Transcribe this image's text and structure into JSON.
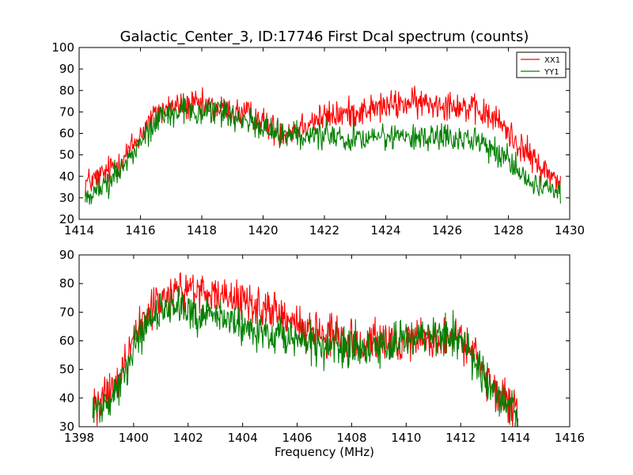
{
  "chart_data": [
    {
      "type": "line",
      "title": "Galactic_Center_3, ID:17746 First Dcal spectrum (counts)",
      "xlabel": "",
      "ylabel": "",
      "xlim": [
        1414,
        1430
      ],
      "ylim": [
        20,
        100
      ],
      "xticks": [
        1414,
        1416,
        1418,
        1420,
        1422,
        1424,
        1426,
        1428,
        1430
      ],
      "yticks": [
        20,
        30,
        40,
        50,
        60,
        70,
        80,
        90,
        100
      ],
      "legend_position": "top-right",
      "grid": false,
      "series": [
        {
          "name": "XX1",
          "color": "#ff0000",
          "noise": 5,
          "points": [
            [
              1414.2,
              37
            ],
            [
              1414.6,
              39
            ],
            [
              1415.0,
              43
            ],
            [
              1415.4,
              48
            ],
            [
              1415.8,
              55
            ],
            [
              1416.2,
              64
            ],
            [
              1416.6,
              70
            ],
            [
              1417.0,
              72
            ],
            [
              1417.4,
              73
            ],
            [
              1417.8,
              73
            ],
            [
              1418.2,
              72
            ],
            [
              1418.6,
              71
            ],
            [
              1419.0,
              70
            ],
            [
              1419.4,
              69
            ],
            [
              1419.8,
              67
            ],
            [
              1420.2,
              63
            ],
            [
              1420.6,
              60
            ],
            [
              1421.0,
              62
            ],
            [
              1421.4,
              65
            ],
            [
              1421.8,
              67
            ],
            [
              1422.2,
              68
            ],
            [
              1422.6,
              69
            ],
            [
              1423.0,
              70
            ],
            [
              1423.4,
              71
            ],
            [
              1423.8,
              72
            ],
            [
              1424.2,
              73
            ],
            [
              1424.6,
              74
            ],
            [
              1425.0,
              74
            ],
            [
              1425.4,
              74
            ],
            [
              1425.8,
              74
            ],
            [
              1426.2,
              74
            ],
            [
              1426.6,
              72
            ],
            [
              1427.0,
              70
            ],
            [
              1427.4,
              68
            ],
            [
              1427.8,
              64
            ],
            [
              1428.2,
              57
            ],
            [
              1428.6,
              51
            ],
            [
              1429.0,
              45
            ],
            [
              1429.4,
              40
            ],
            [
              1429.7,
              38
            ]
          ]
        },
        {
          "name": "YY1",
          "color": "#008000",
          "noise": 4.5,
          "points": [
            [
              1414.2,
              31
            ],
            [
              1414.6,
              33
            ],
            [
              1415.0,
              38
            ],
            [
              1415.4,
              44
            ],
            [
              1415.8,
              51
            ],
            [
              1416.2,
              60
            ],
            [
              1416.6,
              67
            ],
            [
              1417.0,
              70
            ],
            [
              1417.4,
              71
            ],
            [
              1417.8,
              71
            ],
            [
              1418.2,
              71
            ],
            [
              1418.6,
              70
            ],
            [
              1419.0,
              68
            ],
            [
              1419.4,
              66
            ],
            [
              1419.8,
              64
            ],
            [
              1420.2,
              62
            ],
            [
              1420.6,
              60
            ],
            [
              1421.0,
              60
            ],
            [
              1421.4,
              59
            ],
            [
              1421.8,
              59
            ],
            [
              1422.2,
              58
            ],
            [
              1422.6,
              58
            ],
            [
              1423.0,
              58
            ],
            [
              1423.4,
              58
            ],
            [
              1423.8,
              58
            ],
            [
              1424.2,
              58
            ],
            [
              1424.6,
              58
            ],
            [
              1425.0,
              58
            ],
            [
              1425.4,
              58
            ],
            [
              1425.8,
              58
            ],
            [
              1426.2,
              58
            ],
            [
              1426.6,
              57
            ],
            [
              1427.0,
              56
            ],
            [
              1427.4,
              54
            ],
            [
              1427.8,
              50
            ],
            [
              1428.2,
              45
            ],
            [
              1428.6,
              40
            ],
            [
              1429.0,
              36
            ],
            [
              1429.4,
              33
            ],
            [
              1429.7,
              32
            ]
          ]
        }
      ]
    },
    {
      "type": "line",
      "title": "",
      "xlabel": "Frequency (MHz)",
      "ylabel": "",
      "xlim": [
        1398,
        1416
      ],
      "ylim": [
        30,
        90
      ],
      "xticks": [
        1398,
        1400,
        1402,
        1404,
        1406,
        1408,
        1410,
        1412,
        1414,
        1416
      ],
      "yticks": [
        30,
        40,
        50,
        60,
        70,
        80,
        90
      ],
      "grid": false,
      "series": [
        {
          "name": "XX1",
          "color": "#ff0000",
          "noise": 5,
          "points": [
            [
              1398.5,
              37
            ],
            [
              1399.0,
              40
            ],
            [
              1399.5,
              48
            ],
            [
              1400.0,
              60
            ],
            [
              1400.5,
              70
            ],
            [
              1401.0,
              75
            ],
            [
              1401.5,
              77
            ],
            [
              1402.0,
              77
            ],
            [
              1402.5,
              77
            ],
            [
              1403.0,
              76
            ],
            [
              1403.5,
              75
            ],
            [
              1404.0,
              74
            ],
            [
              1404.5,
              72
            ],
            [
              1405.0,
              70
            ],
            [
              1405.5,
              68
            ],
            [
              1406.0,
              66
            ],
            [
              1406.5,
              64
            ],
            [
              1407.0,
              62
            ],
            [
              1407.5,
              61
            ],
            [
              1408.0,
              60
            ],
            [
              1408.5,
              59
            ],
            [
              1409.0,
              59
            ],
            [
              1409.5,
              59
            ],
            [
              1410.0,
              60
            ],
            [
              1410.5,
              61
            ],
            [
              1411.0,
              61
            ],
            [
              1411.5,
              61
            ],
            [
              1412.0,
              60
            ],
            [
              1412.5,
              55
            ],
            [
              1413.0,
              47
            ],
            [
              1413.5,
              40
            ],
            [
              1414.0,
              36
            ],
            [
              1414.1,
              35
            ]
          ]
        },
        {
          "name": "YY1",
          "color": "#008000",
          "noise": 5,
          "points": [
            [
              1398.5,
              34
            ],
            [
              1399.0,
              38
            ],
            [
              1399.5,
              45
            ],
            [
              1400.0,
              56
            ],
            [
              1400.5,
              65
            ],
            [
              1401.0,
              70
            ],
            [
              1401.5,
              72
            ],
            [
              1402.0,
              71
            ],
            [
              1402.5,
              69
            ],
            [
              1403.0,
              68
            ],
            [
              1403.5,
              67
            ],
            [
              1404.0,
              66
            ],
            [
              1404.5,
              64
            ],
            [
              1405.0,
              62
            ],
            [
              1405.5,
              61
            ],
            [
              1406.0,
              60
            ],
            [
              1406.5,
              59
            ],
            [
              1407.0,
              58
            ],
            [
              1407.5,
              58
            ],
            [
              1408.0,
              58
            ],
            [
              1408.5,
              57
            ],
            [
              1409.0,
              58
            ],
            [
              1409.5,
              59
            ],
            [
              1410.0,
              60
            ],
            [
              1410.5,
              61
            ],
            [
              1411.0,
              62
            ],
            [
              1411.5,
              62
            ],
            [
              1412.0,
              60
            ],
            [
              1412.5,
              54
            ],
            [
              1413.0,
              46
            ],
            [
              1413.5,
              40
            ],
            [
              1414.0,
              35
            ],
            [
              1414.1,
              34
            ]
          ]
        }
      ]
    }
  ]
}
